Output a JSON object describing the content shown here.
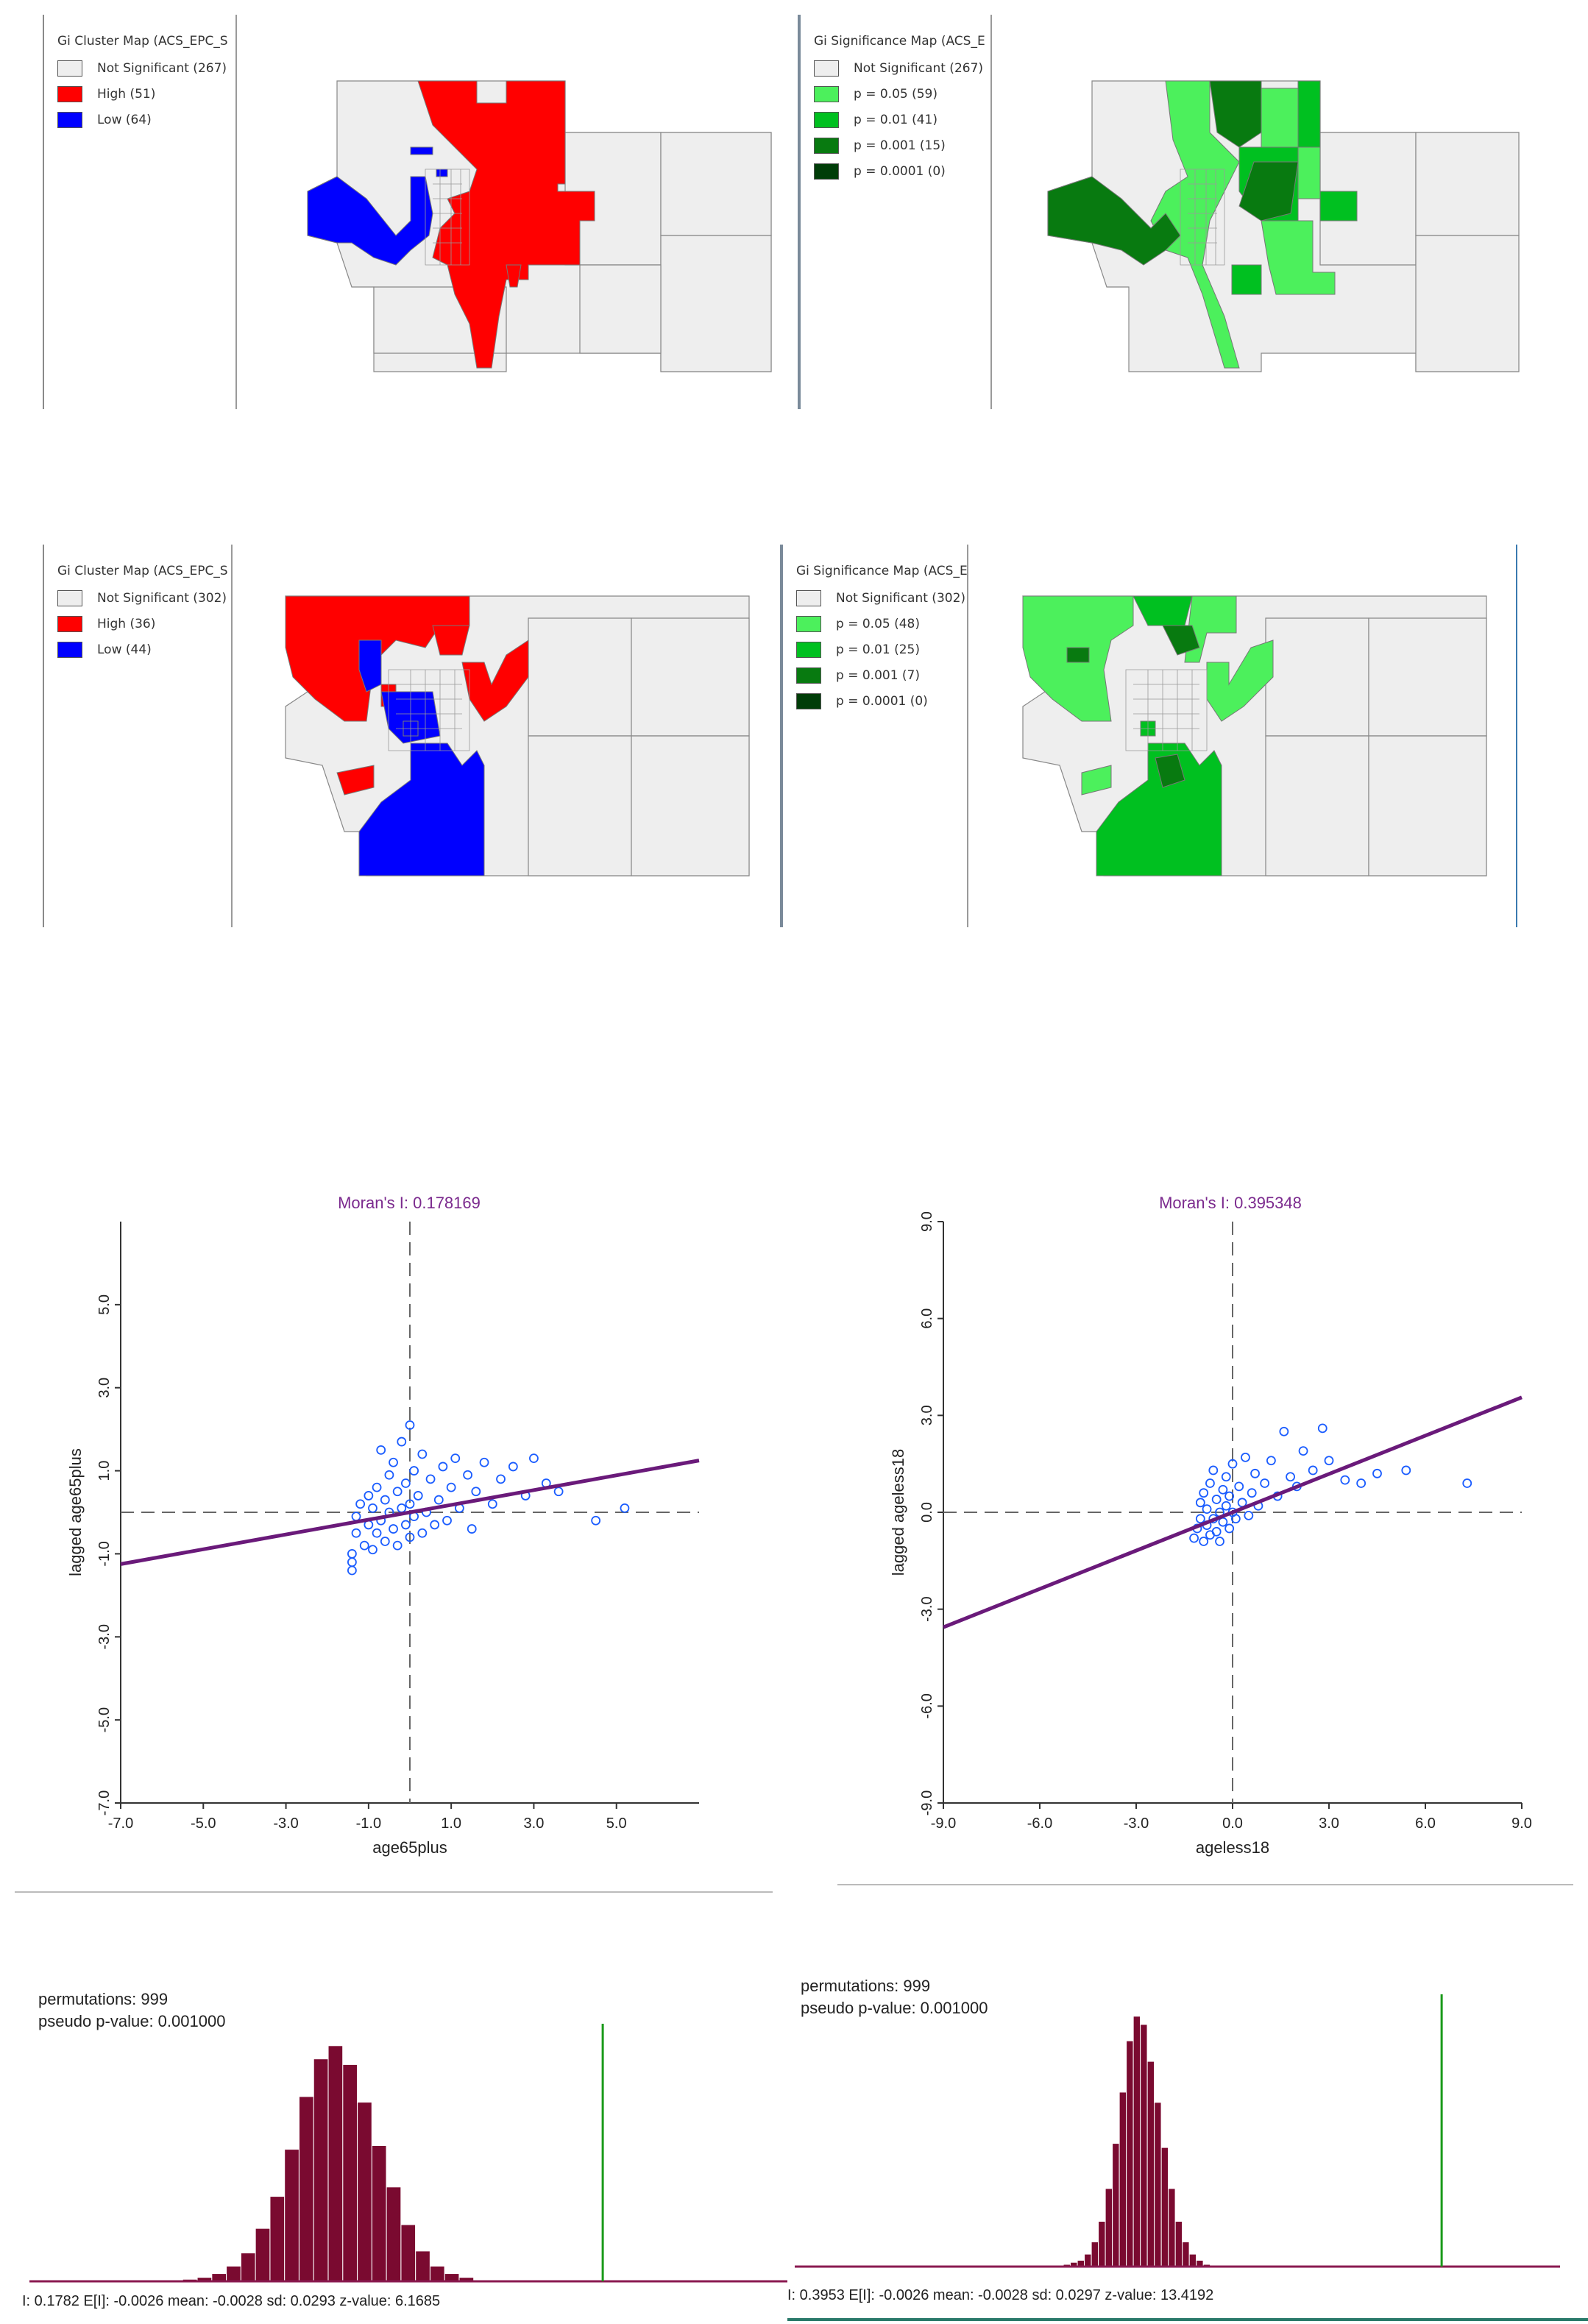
{
  "colors": {
    "not_significant": "#eeeeee",
    "high": "#ff0000",
    "low": "#0000ff",
    "p05": "#4cf05c",
    "p01": "#00c020",
    "p001": "#087a10",
    "p0001": "#003d08",
    "scatter_point": "#1a5cff",
    "regression_line": "#6a1a7a",
    "moran_title": "#7b2a8e",
    "hist_bar": "#7a0a30",
    "hist_axis": "#8a1a50",
    "observed_line": "#1a9a1a"
  },
  "maps": [
    {
      "kind": "cluster",
      "title": "Gi Cluster Map (ACS_EPC_S",
      "legend": [
        {
          "label": "Not Significant (267)",
          "color": "#eeeeee"
        },
        {
          "label": "High (51)",
          "color": "#ff0000"
        },
        {
          "label": "Low (64)",
          "color": "#0000ff"
        }
      ]
    },
    {
      "kind": "significance",
      "title": "Gi Significance Map (ACS_E",
      "legend": [
        {
          "label": "Not Significant (267)",
          "color": "#eeeeee"
        },
        {
          "label": "p = 0.05 (59)",
          "color": "#4cf05c"
        },
        {
          "label": "p = 0.01 (41)",
          "color": "#00c020"
        },
        {
          "label": "p = 0.001 (15)",
          "color": "#087a10"
        },
        {
          "label": "p = 0.0001 (0)",
          "color": "#003d08"
        }
      ]
    },
    {
      "kind": "cluster",
      "title": "Gi Cluster Map (ACS_EPC_S",
      "legend": [
        {
          "label": "Not Significant (302)",
          "color": "#eeeeee"
        },
        {
          "label": "High (36)",
          "color": "#ff0000"
        },
        {
          "label": "Low (44)",
          "color": "#0000ff"
        }
      ]
    },
    {
      "kind": "significance",
      "title": "Gi Significance Map (ACS_E",
      "legend": [
        {
          "label": "Not Significant (302)",
          "color": "#eeeeee"
        },
        {
          "label": "p = 0.05 (48)",
          "color": "#4cf05c"
        },
        {
          "label": "p = 0.01 (25)",
          "color": "#00c020"
        },
        {
          "label": "p = 0.001 (7)",
          "color": "#087a10"
        },
        {
          "label": "p = 0.0001 (0)",
          "color": "#003d08"
        }
      ]
    }
  ],
  "chart_data": [
    {
      "type": "scatter",
      "title": "Moran's I: 0.178169",
      "xlabel": "age65plus",
      "ylabel": "lagged age65plus",
      "xlim": [
        -7.0,
        7.0
      ],
      "ylim": [
        -7.0,
        7.0
      ],
      "xticks": [
        "-7.0",
        "-5.0",
        "-3.0",
        "-1.0",
        "1.0",
        "3.0",
        "5.0"
      ],
      "yticks": [
        "-7.0",
        "-5.0",
        "-3.0",
        "-1.0",
        "1.0",
        "3.0",
        "5.0"
      ],
      "slope": 0.178169,
      "points": [
        [
          -1.4,
          -1.4
        ],
        [
          -1.4,
          -1.2
        ],
        [
          -1.4,
          -1.0
        ],
        [
          -1.3,
          -0.5
        ],
        [
          -1.3,
          -0.1
        ],
        [
          -1.2,
          0.2
        ],
        [
          -1.1,
          -0.8
        ],
        [
          -1.0,
          -0.3
        ],
        [
          -1.0,
          0.4
        ],
        [
          -0.9,
          -0.9
        ],
        [
          -0.9,
          0.1
        ],
        [
          -0.8,
          -0.5
        ],
        [
          -0.8,
          0.6
        ],
        [
          -0.7,
          -0.2
        ],
        [
          -0.7,
          1.5
        ],
        [
          -0.6,
          -0.7
        ],
        [
          -0.6,
          0.3
        ],
        [
          -0.5,
          0.0
        ],
        [
          -0.5,
          0.9
        ],
        [
          -0.4,
          -0.4
        ],
        [
          -0.4,
          1.2
        ],
        [
          -0.3,
          -0.8
        ],
        [
          -0.3,
          0.5
        ],
        [
          -0.2,
          0.1
        ],
        [
          -0.2,
          1.7
        ],
        [
          -0.1,
          -0.3
        ],
        [
          -0.1,
          0.7
        ],
        [
          0.0,
          -0.6
        ],
        [
          0.0,
          0.2
        ],
        [
          0.0,
          2.1
        ],
        [
          0.1,
          1.0
        ],
        [
          0.1,
          -0.1
        ],
        [
          0.2,
          0.4
        ],
        [
          0.3,
          -0.5
        ],
        [
          0.3,
          1.4
        ],
        [
          0.4,
          0.0
        ],
        [
          0.5,
          0.8
        ],
        [
          0.6,
          -0.3
        ],
        [
          0.7,
          0.3
        ],
        [
          0.8,
          1.1
        ],
        [
          0.9,
          -0.2
        ],
        [
          1.0,
          0.6
        ],
        [
          1.1,
          1.3
        ],
        [
          1.2,
          0.1
        ],
        [
          1.4,
          0.9
        ],
        [
          1.5,
          -0.4
        ],
        [
          1.6,
          0.5
        ],
        [
          1.8,
          1.2
        ],
        [
          2.0,
          0.2
        ],
        [
          2.2,
          0.8
        ],
        [
          2.5,
          1.1
        ],
        [
          2.8,
          0.4
        ],
        [
          3.0,
          1.3
        ],
        [
          3.3,
          0.7
        ],
        [
          3.6,
          0.5
        ],
        [
          4.5,
          -0.2
        ],
        [
          5.2,
          0.1
        ]
      ]
    },
    {
      "type": "scatter",
      "title": "Moran's I: 0.395348",
      "xlabel": "ageless18",
      "ylabel": "lagged ageless18",
      "xlim": [
        -9.0,
        9.0
      ],
      "ylim": [
        -9.0,
        9.0
      ],
      "xticks": [
        "-9.0",
        "-6.0",
        "-3.0",
        "0.0",
        "3.0",
        "6.0",
        "9.0"
      ],
      "yticks": [
        "-9.0",
        "-6.0",
        "-3.0",
        "0.0",
        "3.0",
        "6.0",
        "9.0"
      ],
      "slope": 0.395348,
      "points": [
        [
          -1.2,
          -0.8
        ],
        [
          -1.1,
          -0.5
        ],
        [
          -1.0,
          -0.2
        ],
        [
          -1.0,
          0.3
        ],
        [
          -0.9,
          -0.9
        ],
        [
          -0.9,
          0.6
        ],
        [
          -0.8,
          -0.4
        ],
        [
          -0.8,
          0.1
        ],
        [
          -0.7,
          -0.7
        ],
        [
          -0.7,
          0.9
        ],
        [
          -0.6,
          -0.2
        ],
        [
          -0.6,
          1.3
        ],
        [
          -0.5,
          -0.6
        ],
        [
          -0.5,
          0.4
        ],
        [
          -0.4,
          0.0
        ],
        [
          -0.4,
          -0.9
        ],
        [
          -0.3,
          0.7
        ],
        [
          -0.3,
          -0.3
        ],
        [
          -0.2,
          0.2
        ],
        [
          -0.2,
          1.1
        ],
        [
          -0.1,
          -0.5
        ],
        [
          -0.1,
          0.5
        ],
        [
          0.0,
          0.0
        ],
        [
          0.0,
          1.5
        ],
        [
          0.1,
          -0.2
        ],
        [
          0.2,
          0.8
        ],
        [
          0.3,
          0.3
        ],
        [
          0.4,
          1.7
        ],
        [
          0.5,
          -0.1
        ],
        [
          0.6,
          0.6
        ],
        [
          0.7,
          1.2
        ],
        [
          0.8,
          0.2
        ],
        [
          1.0,
          0.9
        ],
        [
          1.2,
          1.6
        ],
        [
          1.4,
          0.5
        ],
        [
          1.6,
          2.5
        ],
        [
          1.8,
          1.1
        ],
        [
          2.0,
          0.8
        ],
        [
          2.2,
          1.9
        ],
        [
          2.5,
          1.3
        ],
        [
          2.8,
          2.6
        ],
        [
          3.0,
          1.6
        ],
        [
          3.5,
          1.0
        ],
        [
          4.0,
          0.9
        ],
        [
          4.5,
          1.2
        ],
        [
          5.4,
          1.3
        ],
        [
          7.3,
          0.9
        ]
      ]
    },
    {
      "type": "bar",
      "title": "",
      "permutations": "permutations: 999",
      "pseudo_p": "pseudo p-value: 0.001000",
      "stats": "I: 0.1782   E[I]: -0.0026   mean: -0.0028   sd: 0.0293   z-value: 6.1685",
      "observed": 0.1782,
      "xlim": [
        -0.2,
        0.3
      ],
      "counts": [
        1,
        2,
        4,
        8,
        15,
        28,
        45,
        70,
        98,
        118,
        125,
        115,
        95,
        72,
        50,
        30,
        16,
        8,
        4,
        2
      ]
    },
    {
      "type": "bar",
      "title": "",
      "permutations": "permutations: 999",
      "pseudo_p": "pseudo p-value: 0.001000",
      "stats": "I: 0.3953   E[I]: -0.0026   mean: -0.0028   sd: 0.0297   z-value: 13.4192",
      "observed": 0.3953,
      "xlim": [
        -0.45,
        0.55
      ],
      "counts": [
        1,
        2,
        3,
        6,
        12,
        22,
        38,
        60,
        85,
        110,
        122,
        118,
        100,
        80,
        58,
        38,
        22,
        12,
        6,
        3,
        1
      ]
    }
  ]
}
